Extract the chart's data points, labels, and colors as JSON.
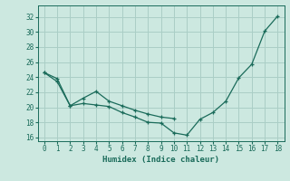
{
  "line1_x": [
    0,
    1,
    2,
    3,
    4,
    5,
    6,
    7,
    8,
    9,
    10,
    11,
    12,
    13,
    14,
    15,
    16,
    17,
    18
  ],
  "line1_y": [
    24.6,
    23.8,
    20.2,
    20.5,
    20.3,
    20.1,
    19.3,
    18.7,
    18.0,
    17.9,
    16.6,
    16.3,
    18.4,
    19.3,
    20.8,
    23.9,
    25.7,
    30.1,
    32.1
  ],
  "line2_x": [
    0,
    1,
    2,
    3,
    4,
    5,
    6,
    7,
    8,
    9,
    10
  ],
  "line2_y": [
    24.6,
    23.4,
    20.2,
    21.2,
    22.1,
    20.8,
    20.2,
    19.6,
    19.1,
    18.7,
    18.5
  ],
  "line_color": "#1a6b5a",
  "bg_color": "#cce8e0",
  "grid_color": "#aacec6",
  "xlabel": "Humidex (Indice chaleur)",
  "xlim": [
    -0.5,
    18.5
  ],
  "ylim": [
    15.5,
    33.5
  ],
  "yticks": [
    16,
    18,
    20,
    22,
    24,
    26,
    28,
    30,
    32
  ],
  "xticks": [
    0,
    1,
    2,
    3,
    4,
    5,
    6,
    7,
    8,
    9,
    10,
    11,
    12,
    13,
    14,
    15,
    16,
    17,
    18
  ]
}
